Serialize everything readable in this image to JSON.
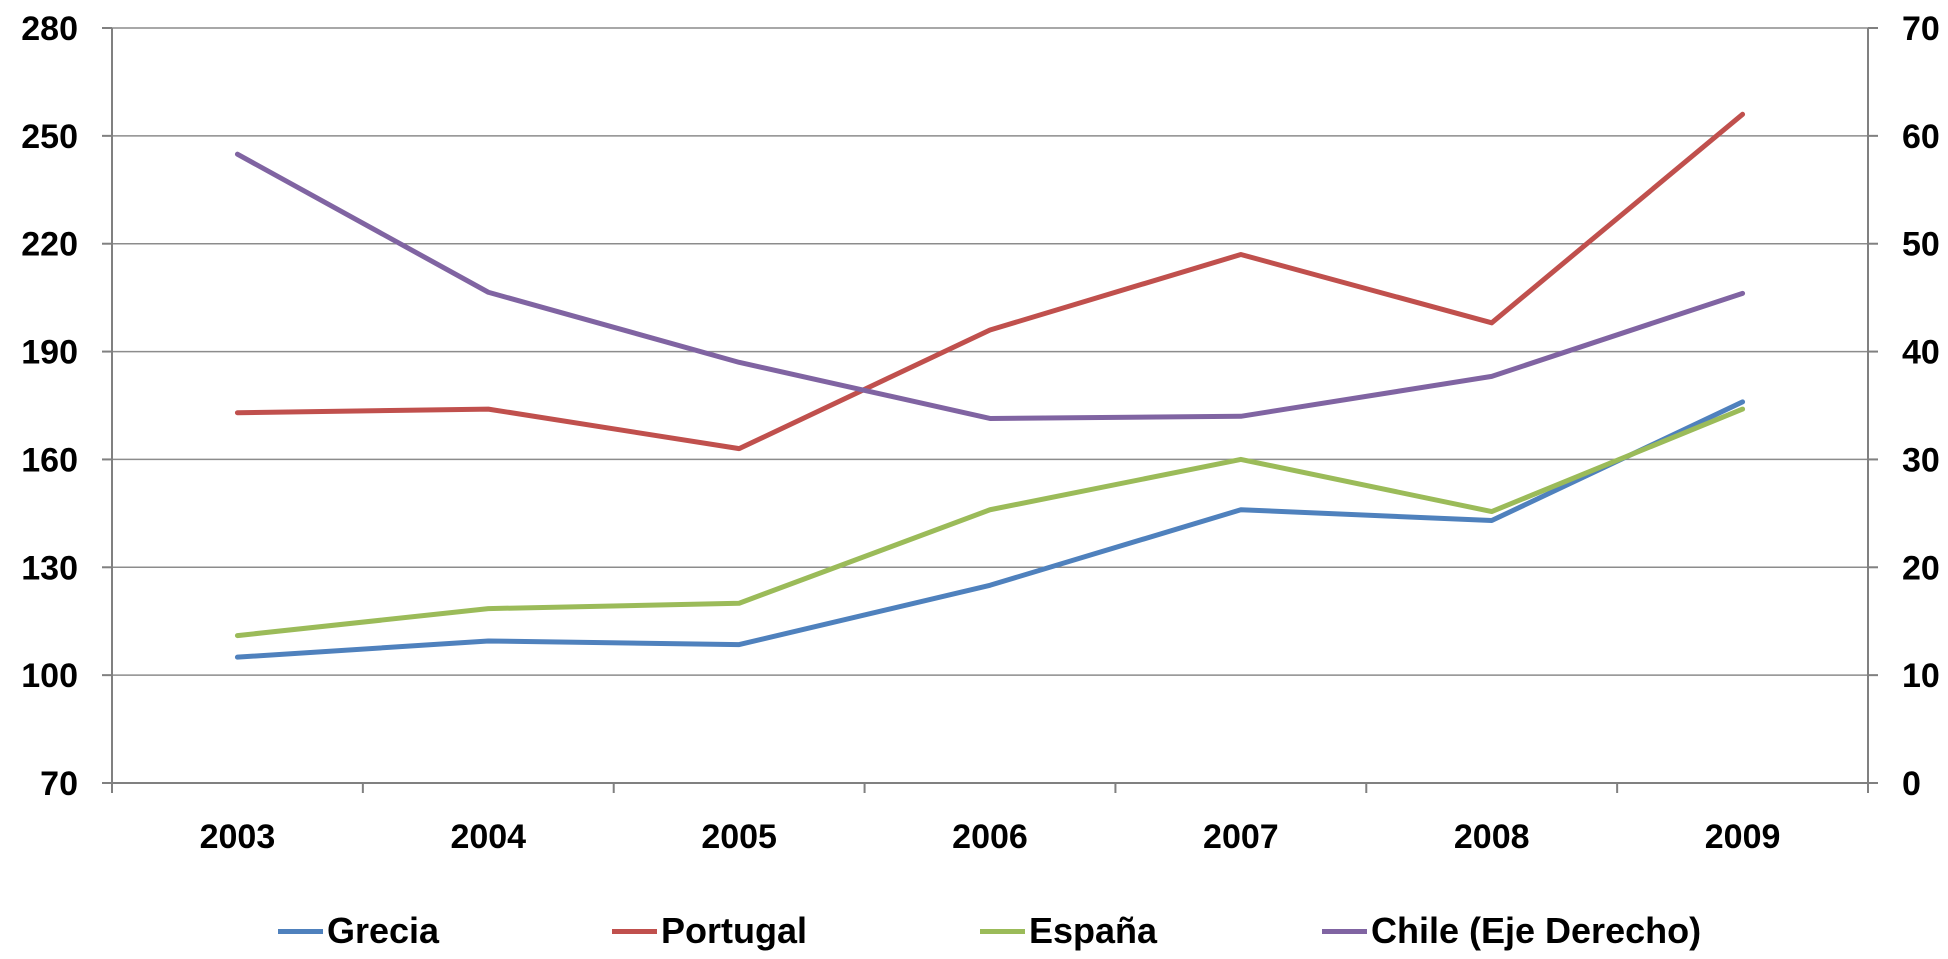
{
  "chart_data": {
    "type": "line",
    "title": "",
    "xlabel": "",
    "ylabel": "",
    "categories": [
      "2003",
      "2004",
      "2005",
      "2006",
      "2007",
      "2008",
      "2009"
    ],
    "y_left": {
      "min": 70,
      "max": 280,
      "ticks": [
        70,
        100,
        130,
        160,
        190,
        220,
        250,
        280
      ]
    },
    "y_right": {
      "min": 0,
      "max": 70,
      "ticks": [
        0,
        10,
        20,
        30,
        40,
        50,
        60,
        70
      ]
    },
    "grid": true,
    "legend_position": "bottom",
    "series": [
      {
        "name": "Grecia",
        "axis": "left",
        "color": "#4F81BD",
        "values": [
          105,
          109.5,
          108.5,
          125,
          146,
          143,
          176
        ]
      },
      {
        "name": "Portugal",
        "axis": "left",
        "color": "#C0504D",
        "values": [
          173,
          174,
          163,
          196,
          217,
          198,
          256
        ]
      },
      {
        "name": "España",
        "axis": "left",
        "color": "#9BBB59",
        "values": [
          111,
          118.5,
          120,
          146,
          160,
          145.5,
          174
        ]
      },
      {
        "name": "Chile (Eje Derecho)",
        "axis": "right",
        "color": "#8064A2",
        "values": [
          58.3,
          45.5,
          39,
          33.8,
          34,
          37.7,
          45.4
        ]
      }
    ]
  }
}
